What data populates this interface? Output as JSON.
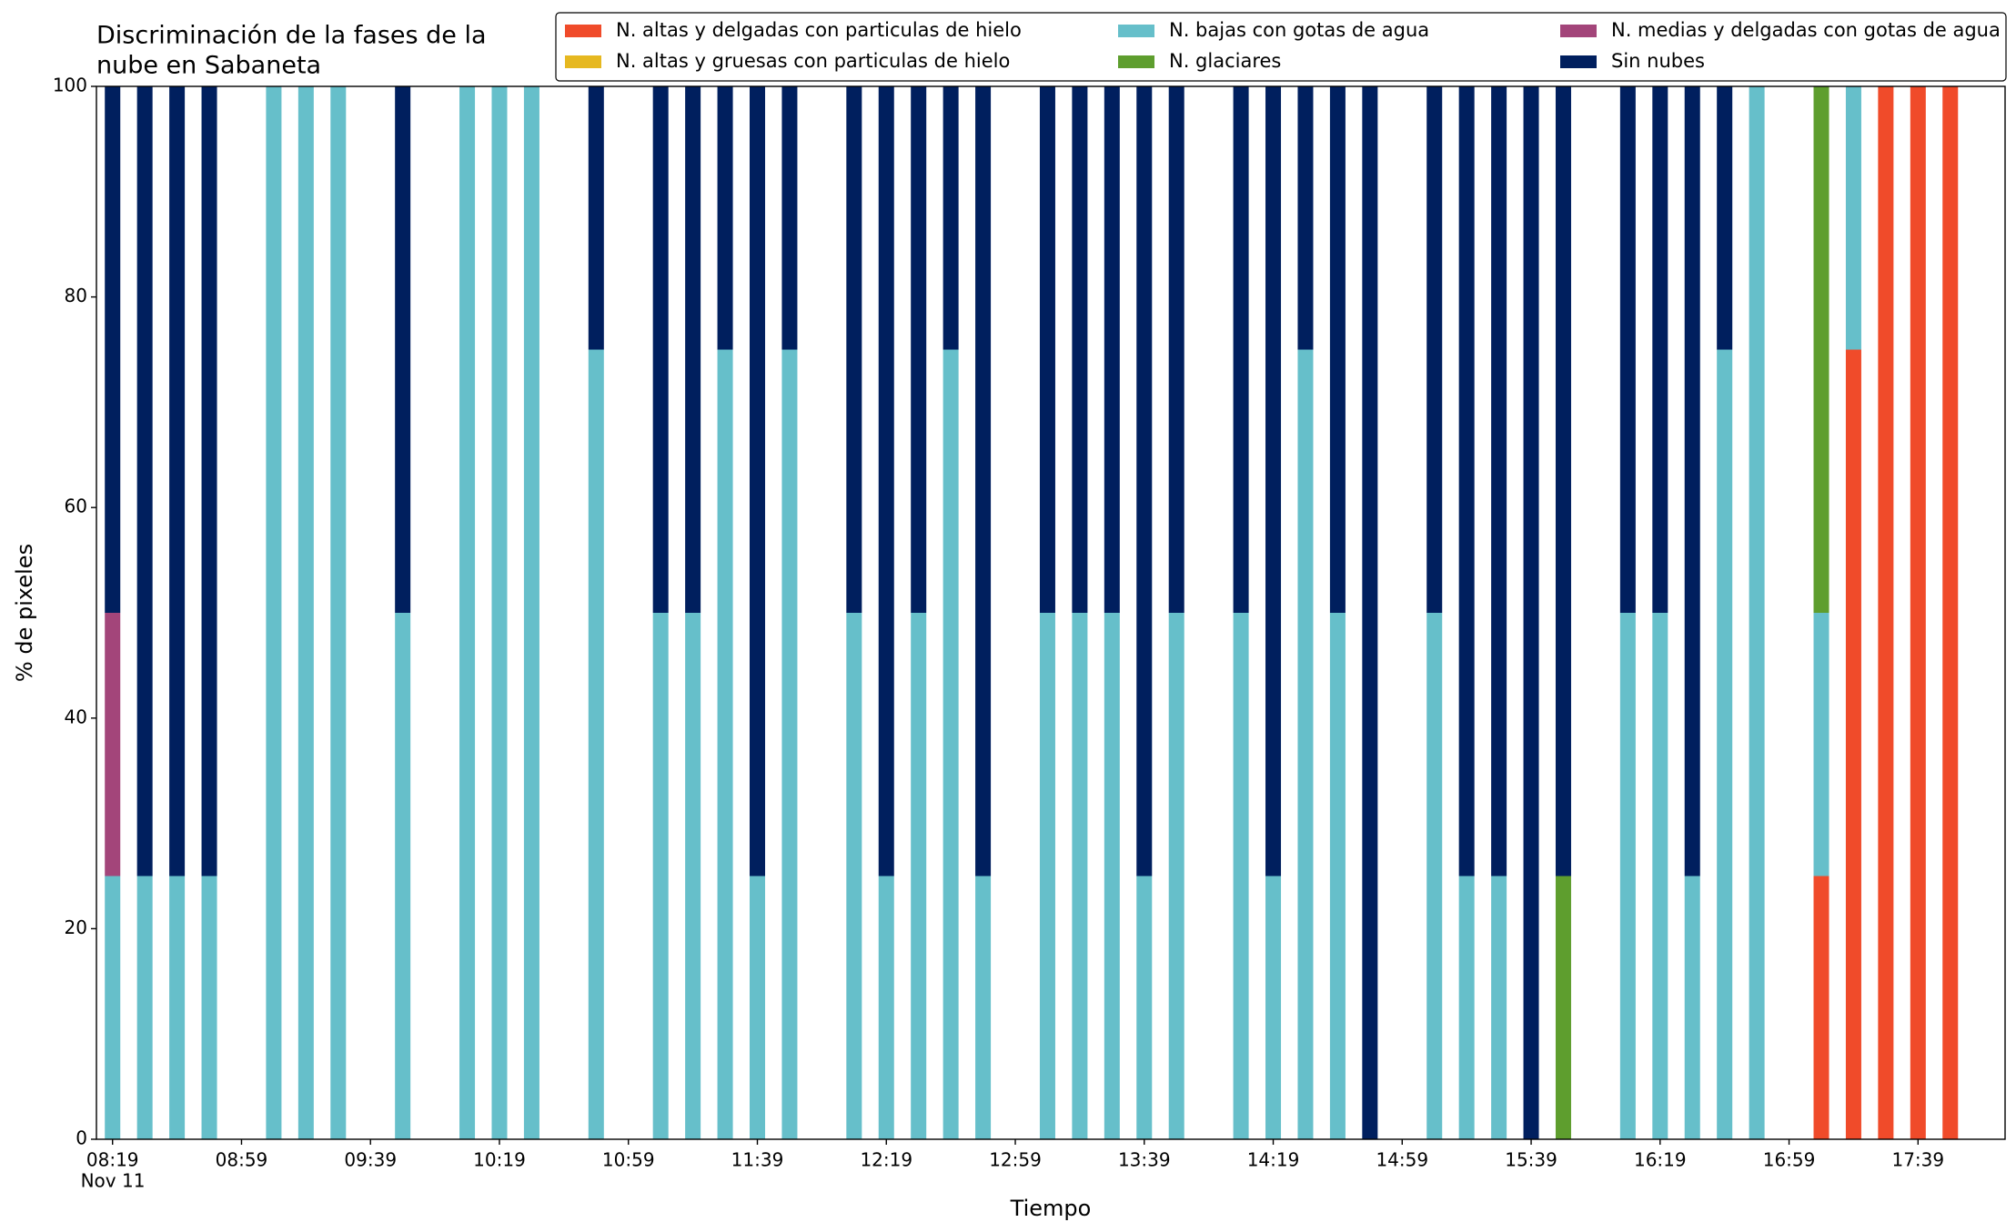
{
  "chart_data": {
    "type": "stacked_bar",
    "title": [
      "Discriminación de la fases de la",
      "nube en Sabaneta"
    ],
    "xlabel": "Tiempo",
    "ylabel": "% de pixeles",
    "x_sublabel": "Nov 11",
    "x": [
      "08:19",
      "08:29",
      "08:39",
      "08:49",
      "09:09",
      "09:19",
      "09:29",
      "09:49",
      "10:09",
      "10:19",
      "10:29",
      "10:49",
      "11:09",
      "11:19",
      "11:29",
      "11:39",
      "11:49",
      "12:09",
      "12:19",
      "12:29",
      "12:39",
      "12:49",
      "13:09",
      "13:19",
      "13:29",
      "13:39",
      "13:49",
      "14:09",
      "14:19",
      "14:29",
      "14:39",
      "14:49",
      "15:09",
      "15:19",
      "15:29",
      "15:39",
      "15:49",
      "16:09",
      "16:19",
      "16:29",
      "16:39",
      "16:49",
      "17:09",
      "17:19",
      "17:29",
      "17:39",
      "17:49"
    ],
    "xlim": [
      "08:14",
      "18:06"
    ],
    "xticks": [
      "08:19",
      "08:59",
      "09:39",
      "10:19",
      "10:59",
      "11:39",
      "12:19",
      "12:59",
      "13:39",
      "14:19",
      "14:59",
      "15:39",
      "16:19",
      "16:59",
      "17:39"
    ],
    "ylim": [
      0,
      100
    ],
    "yticks": [
      0,
      20,
      40,
      60,
      80,
      100
    ],
    "series": [
      {
        "name": "N. altas y delgadas con particulas de hielo",
        "color": "#f04b2a",
        "values": [
          0,
          0,
          0,
          0,
          0,
          0,
          0,
          0,
          0,
          0,
          0,
          0,
          0,
          0,
          0,
          0,
          0,
          0,
          0,
          0,
          0,
          0,
          0,
          0,
          0,
          0,
          0,
          0,
          0,
          0,
          0,
          0,
          0,
          0,
          0,
          0,
          0,
          0,
          0,
          0,
          0,
          0,
          25,
          75,
          100,
          100,
          100
        ]
      },
      {
        "name": "N. altas y gruesas con particulas de hielo",
        "color": "#e6b820",
        "values": [
          0,
          0,
          0,
          0,
          0,
          0,
          0,
          0,
          0,
          0,
          0,
          0,
          0,
          0,
          0,
          0,
          0,
          0,
          0,
          0,
          0,
          0,
          0,
          0,
          0,
          0,
          0,
          0,
          0,
          0,
          0,
          0,
          0,
          0,
          0,
          0,
          0,
          0,
          0,
          0,
          0,
          0,
          0,
          0,
          0,
          0,
          0
        ]
      },
      {
        "name": "N. bajas con gotas de agua",
        "color": "#66bfca",
        "values": [
          25,
          25,
          25,
          25,
          100,
          100,
          100,
          50,
          100,
          100,
          100,
          75,
          50,
          50,
          75,
          25,
          75,
          50,
          25,
          50,
          75,
          25,
          50,
          50,
          50,
          25,
          50,
          50,
          25,
          75,
          50,
          0,
          50,
          25,
          25,
          0,
          0,
          50,
          50,
          25,
          75,
          100,
          25,
          25,
          0,
          0,
          0
        ]
      },
      {
        "name": "N. glaciares",
        "color": "#5e9e2e",
        "values": [
          0,
          0,
          0,
          0,
          0,
          0,
          0,
          0,
          0,
          0,
          0,
          0,
          0,
          0,
          0,
          0,
          0,
          0,
          0,
          0,
          0,
          0,
          0,
          0,
          0,
          0,
          0,
          0,
          0,
          0,
          0,
          0,
          0,
          0,
          0,
          0,
          25,
          0,
          0,
          0,
          0,
          0,
          50,
          0,
          0,
          0,
          0
        ]
      },
      {
        "name": "N. medias y delgadas con gotas de agua",
        "color": "#a3457a",
        "values": [
          25,
          0,
          0,
          0,
          0,
          0,
          0,
          0,
          0,
          0,
          0,
          0,
          0,
          0,
          0,
          0,
          0,
          0,
          0,
          0,
          0,
          0,
          0,
          0,
          0,
          0,
          0,
          0,
          0,
          0,
          0,
          0,
          0,
          0,
          0,
          0,
          0,
          0,
          0,
          0,
          0,
          0,
          0,
          0,
          0,
          0,
          0
        ]
      },
      {
        "name": "Sin nubes",
        "color": "#001f5e",
        "values": [
          50,
          75,
          75,
          75,
          0,
          0,
          0,
          50,
          0,
          0,
          0,
          25,
          50,
          50,
          25,
          75,
          25,
          50,
          75,
          50,
          25,
          75,
          50,
          50,
          50,
          75,
          50,
          50,
          75,
          25,
          50,
          100,
          50,
          75,
          75,
          100,
          75,
          50,
          50,
          75,
          25,
          0,
          0,
          0,
          0,
          0,
          0
        ]
      }
    ]
  }
}
